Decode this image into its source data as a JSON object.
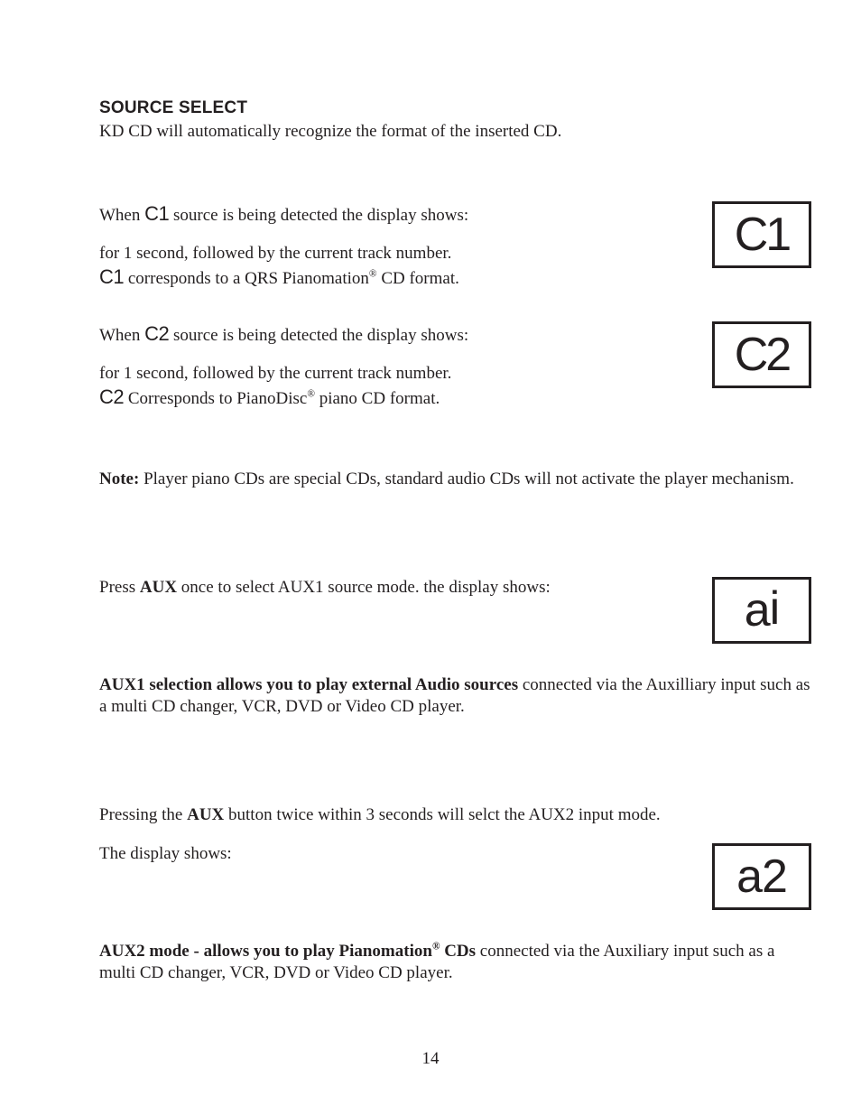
{
  "heading": "SOURCE SELECT",
  "intro": "KD CD will automatically recognize the format of the inserted CD.",
  "c1_line1_a": "When ",
  "c1_code": "C1",
  "c1_line1_b": " source is being detected the display shows:",
  "c1_line2": "for 1 second, followed by the current track number.",
  "c1_line3_code": "C1",
  "c1_line3_rest_a": " corresponds to a QRS Pianomation",
  "c1_line3_rest_b": " CD format.",
  "c1_box": "C1",
  "c2_line1_a": "When ",
  "c2_code": "C2",
  "c2_line1_b": " source is being detected the display shows:",
  "c2_line2": "for 1 second, followed by the current track number.",
  "c2_line3_code": "C2",
  "c2_line3_rest_a": " Corresponds to PianoDisc",
  "c2_line3_rest_b": " piano CD format.",
  "c2_box": "C2",
  "note_label": "Note:",
  "note_text": " Player piano CDs are special CDs, standard audio CDs will not activate the player mechanism.",
  "aux1_line_a": "Press ",
  "aux1_bold": "AUX",
  "aux1_line_b": " once to select AUX1 source mode. the display shows:",
  "aux1_box": "ai",
  "aux1_desc_bold": "AUX1 selection allows you to play external Audio sources",
  "aux1_desc_rest": "  connected via the Auxilliary input such as a multi CD changer, VCR, DVD or Video CD player.",
  "aux2_line_a": "Pressing the ",
  "aux2_bold": "AUX",
  "aux2_line_b": " button twice within 3 seconds will selct the AUX2 input mode.",
  "aux2_line2": "The display shows:",
  "aux2_box": "a2",
  "aux2_desc_bold_a": "AUX2 mode - allows you to play Pianomation",
  "aux2_desc_bold_b": " CDs",
  "aux2_desc_rest": " connected via the Auxiliary input such as a multi CD changer, VCR, DVD or Video CD player.",
  "reg": "®",
  "page_number": "14"
}
